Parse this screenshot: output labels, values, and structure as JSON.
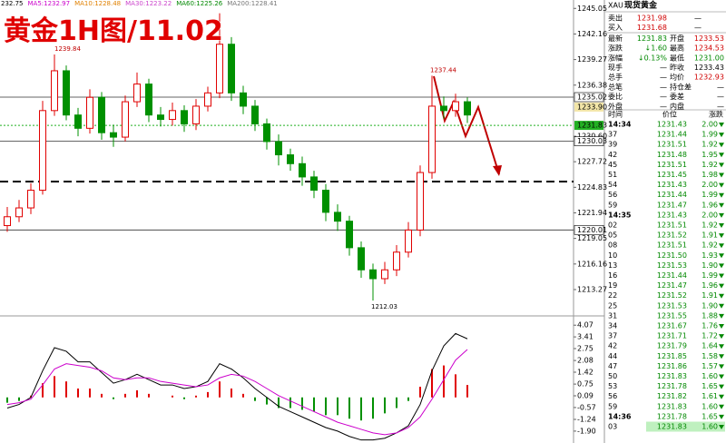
{
  "overlay_title": "黄金1H图/11.02",
  "legend_bar": [
    {
      "text": "232.75",
      "color": "#000000"
    },
    {
      "text": "MA5:1232.97",
      "color": "#cc00cc"
    },
    {
      "text": "MA10:1228.48",
      "color": "#e08000"
    },
    {
      "text": "MA30:1223.22",
      "color": "#cc44cc"
    },
    {
      "text": "MA60:1225.26",
      "color": "#008800"
    },
    {
      "text": "MA200:1228.41",
      "color": "#777777"
    }
  ],
  "chart_data": [
    {
      "type": "candlestick",
      "up_color": "#e00000",
      "down_color": "#009000",
      "open": [
        1220.5,
        1221.5,
        1222.5,
        1224.5,
        1233.5,
        1238.0,
        1233.0,
        1231.5,
        1235.0,
        1231.0,
        1230.5,
        1234.5,
        1236.5,
        1233.0,
        1232.5,
        1233.5,
        1232.0,
        1234.0,
        1235.5,
        1241.0,
        1235.5,
        1234.0,
        1232.0,
        1230.0,
        1228.5,
        1227.5,
        1226.0,
        1224.5,
        1222.0,
        1221.0,
        1218.0,
        1215.5,
        1214.5,
        1215.5,
        1217.5,
        1220.0,
        1226.5,
        1234.0,
        1233.5,
        1234.5
      ],
      "high": [
        1222.6,
        1223.4,
        1225.3,
        1234.6,
        1239.84,
        1238.6,
        1233.8,
        1235.9,
        1235.6,
        1231.9,
        1235.2,
        1237.8,
        1237.1,
        1233.9,
        1234.4,
        1234.1,
        1234.8,
        1236.2,
        1244.5,
        1241.8,
        1236.3,
        1234.7,
        1232.6,
        1230.8,
        1229.2,
        1228.3,
        1226.7,
        1225.2,
        1222.9,
        1221.6,
        1218.7,
        1216.2,
        1216.4,
        1218.3,
        1220.9,
        1227.3,
        1237.44,
        1235.1,
        1235.4,
        1235.0
      ],
      "low": [
        1219.8,
        1220.9,
        1221.8,
        1224.0,
        1232.9,
        1232.4,
        1230.6,
        1230.9,
        1230.2,
        1229.4,
        1230.0,
        1233.9,
        1232.2,
        1231.7,
        1231.8,
        1231.1,
        1231.3,
        1233.4,
        1234.9,
        1234.6,
        1233.1,
        1231.2,
        1229.1,
        1227.3,
        1226.7,
        1225.0,
        1223.6,
        1221.0,
        1219.9,
        1217.1,
        1214.6,
        1212.03,
        1213.9,
        1214.8,
        1216.9,
        1219.3,
        1225.8,
        1232.6,
        1232.8,
        1232.1
      ],
      "close": [
        1221.5,
        1222.5,
        1224.5,
        1233.5,
        1238.0,
        1233.0,
        1231.5,
        1235.0,
        1231.0,
        1230.5,
        1234.5,
        1236.5,
        1233.0,
        1232.5,
        1233.5,
        1232.0,
        1234.0,
        1235.5,
        1241.0,
        1235.5,
        1234.0,
        1232.0,
        1230.0,
        1228.5,
        1227.5,
        1226.0,
        1224.5,
        1222.0,
        1221.0,
        1218.0,
        1215.5,
        1214.5,
        1215.5,
        1217.5,
        1220.0,
        1226.5,
        1234.0,
        1233.5,
        1234.5,
        1233.0
      ],
      "ylim": [
        1210.6,
        1246.0
      ],
      "yticks": [
        1245.05,
        1242.16,
        1239.27,
        1236.38,
        {
          "value": 1230.6,
          "label": "1230.60"
        },
        1227.72,
        1224.83,
        1221.94,
        1219.05,
        1216.16,
        1213.27
      ],
      "levels": [
        1235.02,
        1230.03,
        1220.01
      ],
      "price_tags": [
        {
          "value": 1233.9,
          "label": "1233.90",
          "color": "#f3e6a8"
        },
        {
          "value": 1231.83,
          "color": "#22b022"
        }
      ]
    },
    {
      "type": "macd",
      "ylim": [
        -2.57,
        4.49
      ],
      "yticks": [
        4.07,
        3.41,
        2.75,
        2.08,
        1.42,
        0.75,
        0.09,
        -0.57,
        -1.24,
        {
          "value": -1.9,
          "label": "-1.90"
        }
      ],
      "histogram": [
        -0.3,
        -0.2,
        0.1,
        0.8,
        1.2,
        0.9,
        0.5,
        0.5,
        0.2,
        -0.1,
        0.2,
        0.4,
        0.2,
        0.0,
        0.1,
        -0.1,
        0.1,
        0.3,
        0.9,
        0.5,
        0.2,
        -0.2,
        -0.4,
        -0.6,
        -0.6,
        -0.7,
        -0.8,
        -1.0,
        -1.0,
        -1.2,
        -1.3,
        -1.2,
        -0.9,
        -0.6,
        -0.2,
        0.6,
        1.6,
        1.8,
        1.3,
        0.7
      ],
      "up_color": "#e00000",
      "down_color": "#009000",
      "series": [
        {
          "color": "#000000",
          "values": [
            -0.6,
            -0.4,
            0.0,
            1.5,
            2.8,
            2.6,
            2.0,
            2.0,
            1.4,
            0.8,
            1.0,
            1.3,
            1.0,
            0.7,
            0.7,
            0.5,
            0.6,
            0.9,
            1.9,
            1.6,
            1.1,
            0.5,
            0.0,
            -0.5,
            -0.8,
            -1.1,
            -1.4,
            -1.7,
            -1.9,
            -2.2,
            -2.4,
            -2.4,
            -2.3,
            -2.0,
            -1.6,
            -0.4,
            1.5,
            2.9,
            3.6,
            3.3
          ]
        },
        {
          "color": "#cc00cc",
          "values": [
            -0.4,
            -0.3,
            -0.1,
            0.7,
            1.6,
            1.9,
            1.8,
            1.7,
            1.5,
            1.1,
            1.0,
            1.1,
            1.1,
            0.9,
            0.8,
            0.7,
            0.6,
            0.7,
            1.1,
            1.3,
            1.2,
            0.9,
            0.5,
            0.1,
            -0.2,
            -0.5,
            -0.8,
            -1.1,
            -1.4,
            -1.6,
            -1.8,
            -2.0,
            -2.1,
            -2.0,
            -1.7,
            -1.1,
            -0.1,
            1.0,
            2.1,
            2.7
          ]
        }
      ]
    }
  ],
  "quote_panel": {
    "symbol": "XAU",
    "title": "现货黄金",
    "rows": [
      [
        "卖出",
        {
          "text": "1231.98",
          "color": "#d00000"
        },
        "—"
      ],
      [
        "买入",
        {
          "text": "1231.68",
          "color": "#d00000"
        },
        "—"
      ],
      [
        "最新",
        {
          "text": "1231.83",
          "color": "#008800"
        },
        "开盘",
        {
          "text": "1233.53",
          "color": "#d00000"
        }
      ],
      [
        "涨跌",
        {
          "text": "↓1.60",
          "color": "#008800"
        },
        "最高",
        {
          "text": "1234.53",
          "color": "#d00000"
        }
      ],
      [
        "涨幅",
        {
          "text": "↓0.13%",
          "color": "#008800"
        },
        "最低",
        {
          "text": "1231.00",
          "color": "#008800"
        }
      ],
      [
        "现手",
        "—",
        "昨收",
        "1233.43"
      ],
      [
        "总手",
        "—",
        "均价",
        {
          "text": "1232.93",
          "color": "#d00000"
        }
      ],
      [
        "总笔",
        "—",
        "持仓差",
        "—"
      ],
      [
        "委比",
        "—",
        "委差",
        "—"
      ],
      [
        "外盘",
        "—",
        "内盘",
        "—"
      ]
    ]
  },
  "trades": {
    "header": [
      "时间",
      "价位",
      "涨跌"
    ],
    "color": "#008800",
    "highlight": "#bff0bf",
    "rows": [
      [
        "14:34",
        "1231.43",
        "2.00"
      ],
      [
        "37",
        "1231.44",
        "1.99"
      ],
      [
        "39",
        "1231.51",
        "1.92"
      ],
      [
        "42",
        "1231.48",
        "1.95"
      ],
      [
        "45",
        "1231.51",
        "1.92"
      ],
      [
        "51",
        "1231.45",
        "1.98"
      ],
      [
        "54",
        "1231.43",
        "2.00"
      ],
      [
        "56",
        "1231.44",
        "1.99"
      ],
      [
        "59",
        "1231.47",
        "1.96"
      ],
      [
        "14:35",
        "1231.43",
        "2.00"
      ],
      [
        "02",
        "1231.51",
        "1.92"
      ],
      [
        "05",
        "1231.52",
        "1.91"
      ],
      [
        "08",
        "1231.51",
        "1.92"
      ],
      [
        "10",
        "1231.50",
        "1.93"
      ],
      [
        "13",
        "1231.53",
        "1.90"
      ],
      [
        "16",
        "1231.44",
        "1.99"
      ],
      [
        "19",
        "1231.47",
        "1.96"
      ],
      [
        "22",
        "1231.52",
        "1.91"
      ],
      [
        "25",
        "1231.53",
        "1.90"
      ],
      [
        "31",
        "1231.55",
        "1.88"
      ],
      [
        "34",
        "1231.67",
        "1.76"
      ],
      [
        "37",
        "1231.71",
        "1.72"
      ],
      [
        "42",
        "1231.79",
        "1.64"
      ],
      [
        "44",
        "1231.85",
        "1.58"
      ],
      [
        "47",
        "1231.86",
        "1.57"
      ],
      [
        "50",
        "1231.83",
        "1.60"
      ],
      [
        "53",
        "1231.78",
        "1.65"
      ],
      [
        "56",
        "1231.82",
        "1.61"
      ],
      [
        "59",
        "1231.83",
        "1.60"
      ],
      [
        "14:36",
        "1231.78",
        "1.65"
      ],
      [
        "03",
        "1231.83",
        "1.60"
      ]
    ]
  }
}
